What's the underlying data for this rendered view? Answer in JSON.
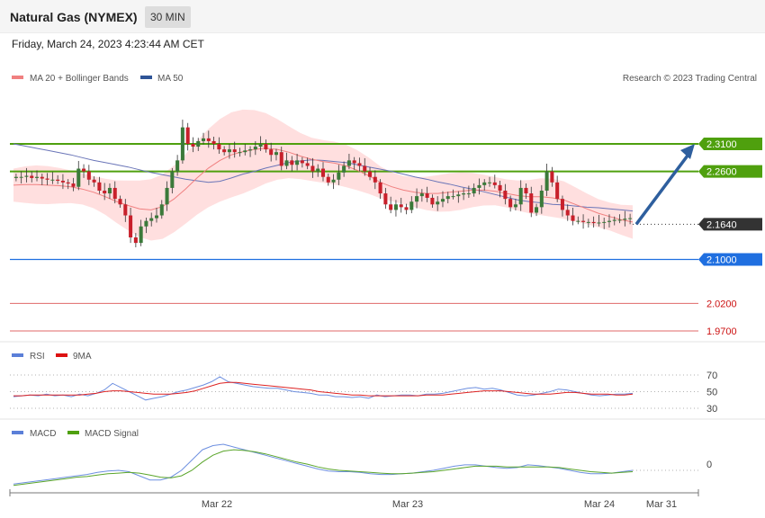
{
  "header": {
    "title": "Natural Gas (NYMEX)",
    "timeframe": "30 MIN"
  },
  "date_line": "Friday, March 24, 2023 4:23:44 AM CET",
  "credit": "Research © 2023 Trading Central",
  "colors": {
    "candle_up": "#3b7a3a",
    "candle_down": "#c8202b",
    "bb": "#ffd9d9",
    "ma20": "#f08080",
    "ma50": "#6a75b8",
    "green_level": "#4fa00e",
    "blue_level": "#1f6fe0",
    "red_level": "#e06a6a",
    "arrow": "#2e5f9e",
    "rsi": "#6d8fe0",
    "rsi_ma": "#dd2222",
    "macd": "#6d8fe0",
    "macd_signal": "#5aa52a"
  },
  "legends": {
    "main": [
      {
        "label": "MA 20 + Bollinger Bands",
        "color": "#f08080"
      },
      {
        "label": "MA 50",
        "color": "#2f5597"
      }
    ],
    "rsi": [
      {
        "label": "RSI",
        "color": "#5b7fd8"
      },
      {
        "label": "9MA",
        "color": "#dd1111"
      }
    ],
    "macd": [
      {
        "label": "MACD",
        "color": "#5b7fd8"
      },
      {
        "label": "MACD Signal",
        "color": "#4fa00e"
      }
    ]
  },
  "chart_data": [
    {
      "type": "line",
      "panel": "price",
      "title": "Natural Gas (NYMEX)",
      "ylim": [
        1.955,
        2.35
      ],
      "x_ticks": [
        "Mar 22",
        "Mar 23",
        "Mar 24",
        "Mar 31"
      ],
      "levels": [
        {
          "value": 2.31,
          "label": "2.3100",
          "style": "resistance"
        },
        {
          "value": 2.26,
          "label": "2.2600",
          "style": "resistance"
        },
        {
          "value": 2.164,
          "label": "2.1640",
          "style": "current"
        },
        {
          "value": 2.1,
          "label": "2.1000",
          "style": "pivot"
        },
        {
          "value": 2.02,
          "label": "2.0200",
          "style": "support"
        },
        {
          "value": 1.97,
          "label": "1.9700",
          "style": "support"
        }
      ],
      "candles_close": [
        2.25,
        2.25,
        2.252,
        2.248,
        2.25,
        2.247,
        2.245,
        2.245,
        2.243,
        2.24,
        2.238,
        2.232,
        2.265,
        2.26,
        2.245,
        2.24,
        2.225,
        2.22,
        2.23,
        2.21,
        2.2,
        2.18,
        2.14,
        2.13,
        2.16,
        2.17,
        2.175,
        2.18,
        2.2,
        2.23,
        2.26,
        2.28,
        2.34,
        2.31,
        2.305,
        2.315,
        2.32,
        2.315,
        2.31,
        2.3,
        2.295,
        2.3,
        2.295,
        2.295,
        2.298,
        2.3,
        2.305,
        2.31,
        2.3,
        2.29,
        2.295,
        2.27,
        2.28,
        2.272,
        2.28,
        2.275,
        2.27,
        2.26,
        2.265,
        2.25,
        2.24,
        2.245,
        2.258,
        2.27,
        2.28,
        2.275,
        2.27,
        2.26,
        2.25,
        2.24,
        2.22,
        2.2,
        2.19,
        2.2,
        2.195,
        2.19,
        2.205,
        2.215,
        2.22,
        2.212,
        2.2,
        2.205,
        2.21,
        2.215,
        2.215,
        2.218,
        2.22,
        2.22,
        2.23,
        2.235,
        2.24,
        2.24,
        2.235,
        2.225,
        2.21,
        2.195,
        2.2,
        2.23,
        2.22,
        2.185,
        2.195,
        2.225,
        2.26,
        2.24,
        2.21,
        2.19,
        2.18,
        2.17,
        2.17,
        2.168,
        2.168,
        2.166,
        2.167,
        2.168,
        2.17,
        2.172,
        2.172,
        2.174,
        2.175
      ],
      "ma50": [
        2.31,
        2.306,
        2.302,
        2.298,
        2.294,
        2.29,
        2.285,
        2.28,
        2.276,
        2.272,
        2.268,
        2.263,
        2.258,
        2.254,
        2.25,
        2.246,
        2.243,
        2.24,
        2.242,
        2.248,
        2.255,
        2.26,
        2.266,
        2.271,
        2.276,
        2.279,
        2.281,
        2.28,
        2.278,
        2.276,
        2.272,
        2.268,
        2.264,
        2.26,
        2.255,
        2.25,
        2.246,
        2.241,
        2.237,
        2.232,
        2.228,
        2.223,
        2.218,
        2.213,
        2.208,
        2.205,
        2.203,
        2.2,
        2.199,
        2.197,
        2.195,
        2.194,
        2.192,
        2.19,
        2.188
      ],
      "ma20": [
        2.235,
        2.236,
        2.236,
        2.235,
        2.234,
        2.232,
        2.228,
        2.222,
        2.214,
        2.205,
        2.198,
        2.192,
        2.19,
        2.196,
        2.21,
        2.228,
        2.248,
        2.266,
        2.28,
        2.29,
        2.296,
        2.3,
        2.302,
        2.3,
        2.295,
        2.288,
        2.282,
        2.278,
        2.275,
        2.27,
        2.262,
        2.252,
        2.24,
        2.232,
        2.226,
        2.222,
        2.22,
        2.22,
        2.222,
        2.224,
        2.226,
        2.226,
        2.224,
        2.22,
        2.216,
        2.214,
        2.214,
        2.212,
        2.208,
        2.2,
        2.192,
        2.184,
        2.178,
        2.172,
        2.168
      ]
    },
    {
      "type": "line",
      "panel": "rsi",
      "ylim": [
        25,
        75
      ],
      "y_ticks": [
        "70",
        "50",
        "30"
      ],
      "series": [
        {
          "name": "RSI",
          "values": [
            44,
            45,
            46,
            45,
            47,
            45,
            46,
            44,
            47,
            45,
            48,
            52,
            60,
            55,
            50,
            45,
            40,
            42,
            44,
            47,
            50,
            52,
            55,
            58,
            62,
            68,
            62,
            60,
            58,
            56,
            55,
            54,
            54,
            52,
            50,
            49,
            48,
            46,
            46,
            44,
            44,
            43,
            44,
            42,
            46,
            44,
            45,
            46,
            46,
            45,
            47,
            47,
            48,
            50,
            52,
            54,
            55,
            53,
            54,
            52,
            49,
            46,
            45,
            46,
            48,
            50,
            53,
            52,
            50,
            48,
            46,
            45,
            46,
            47,
            47,
            48
          ]
        },
        {
          "name": "9MA",
          "values": [
            45,
            45,
            46,
            46,
            46,
            46,
            46,
            46,
            46,
            47,
            48,
            50,
            51,
            51,
            50,
            49,
            48,
            47,
            47,
            47,
            48,
            49,
            51,
            54,
            57,
            60,
            61,
            61,
            60,
            59,
            58,
            57,
            56,
            55,
            54,
            53,
            52,
            50,
            49,
            48,
            47,
            46,
            46,
            45,
            45,
            45,
            45,
            45,
            45,
            45,
            46,
            46,
            46,
            47,
            48,
            49,
            50,
            51,
            51,
            51,
            50,
            49,
            48,
            47,
            47,
            47,
            48,
            49,
            49,
            48,
            47,
            47,
            47,
            46,
            46,
            47
          ]
        }
      ]
    },
    {
      "type": "line",
      "panel": "macd",
      "y_ticks": [
        "0"
      ],
      "series": [
        {
          "name": "MACD",
          "values": [
            -0.02,
            -0.018,
            -0.016,
            -0.014,
            -0.012,
            -0.01,
            -0.008,
            -0.006,
            -0.003,
            -0.001,
            0.0,
            -0.002,
            -0.008,
            -0.014,
            -0.014,
            -0.01,
            0.0,
            0.015,
            0.03,
            0.036,
            0.038,
            0.034,
            0.03,
            0.026,
            0.022,
            0.018,
            0.014,
            0.01,
            0.006,
            0.002,
            -0.001,
            -0.002,
            -0.002,
            -0.003,
            -0.005,
            -0.006,
            -0.006,
            -0.005,
            -0.004,
            -0.002,
            0.0,
            0.003,
            0.006,
            0.008,
            0.008,
            0.006,
            0.004,
            0.003,
            0.004,
            0.008,
            0.007,
            0.005,
            0.003,
            0.0,
            -0.003,
            -0.005,
            -0.005,
            -0.004,
            -0.002,
            0.0
          ]
        },
        {
          "name": "MACD Signal",
          "values": [
            -0.022,
            -0.02,
            -0.018,
            -0.016,
            -0.014,
            -0.012,
            -0.01,
            -0.009,
            -0.007,
            -0.005,
            -0.004,
            -0.003,
            -0.004,
            -0.007,
            -0.01,
            -0.011,
            -0.008,
            0.0,
            0.012,
            0.022,
            0.028,
            0.03,
            0.029,
            0.027,
            0.024,
            0.02,
            0.016,
            0.012,
            0.009,
            0.005,
            0.002,
            0.0,
            -0.001,
            -0.002,
            -0.003,
            -0.004,
            -0.005,
            -0.005,
            -0.004,
            -0.003,
            -0.002,
            0.0,
            0.002,
            0.004,
            0.006,
            0.006,
            0.006,
            0.005,
            0.005,
            0.005,
            0.005,
            0.005,
            0.004,
            0.002,
            0.0,
            -0.002,
            -0.003,
            -0.004,
            -0.003,
            -0.002
          ]
        }
      ]
    }
  ]
}
